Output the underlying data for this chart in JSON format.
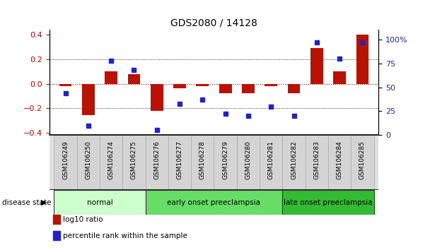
{
  "title": "GDS2080 / 14128",
  "samples": [
    "GSM106249",
    "GSM106250",
    "GSM106274",
    "GSM106275",
    "GSM106276",
    "GSM106277",
    "GSM106278",
    "GSM106279",
    "GSM106280",
    "GSM106281",
    "GSM106282",
    "GSM106283",
    "GSM106284",
    "GSM106285"
  ],
  "log10_ratio": [
    -0.02,
    -0.26,
    0.1,
    0.08,
    -0.22,
    -0.04,
    -0.02,
    -0.08,
    -0.08,
    -0.02,
    -0.08,
    0.29,
    0.1,
    0.4
  ],
  "percentile_rank": [
    44,
    10,
    78,
    68,
    5,
    33,
    37,
    22,
    20,
    30,
    20,
    97,
    80,
    97
  ],
  "bar_color": "#BB1100",
  "dot_color": "#2222CC",
  "ylim_left": [
    -0.42,
    0.44
  ],
  "ylim_right": [
    0,
    110
  ],
  "yticks_left": [
    -0.4,
    -0.2,
    0.0,
    0.2,
    0.4
  ],
  "yticks_right": [
    0,
    25,
    50,
    75,
    100
  ],
  "ytick_labels_right": [
    "0",
    "25",
    "50",
    "75",
    "100%"
  ],
  "dotted_lines": [
    -0.2,
    0.2
  ],
  "zero_line_color": "#CC0000",
  "groups": [
    {
      "label": "normal",
      "start": 0,
      "end": 3,
      "color": "#CCFFCC"
    },
    {
      "label": "early onset preeclampsia",
      "start": 4,
      "end": 9,
      "color": "#66DD66"
    },
    {
      "label": "late onset preeclampsia",
      "start": 10,
      "end": 13,
      "color": "#33BB33"
    }
  ],
  "legend": [
    {
      "label": "log10 ratio",
      "color": "#BB1100"
    },
    {
      "label": "percentile rank within the sample",
      "color": "#2222CC"
    }
  ],
  "disease_state_label": "disease state",
  "background_color": "#FFFFFF",
  "tick_label_color_right": "#2222CC",
  "tick_label_color_left": "#CC0000",
  "xlim": [
    -0.7,
    13.7
  ]
}
